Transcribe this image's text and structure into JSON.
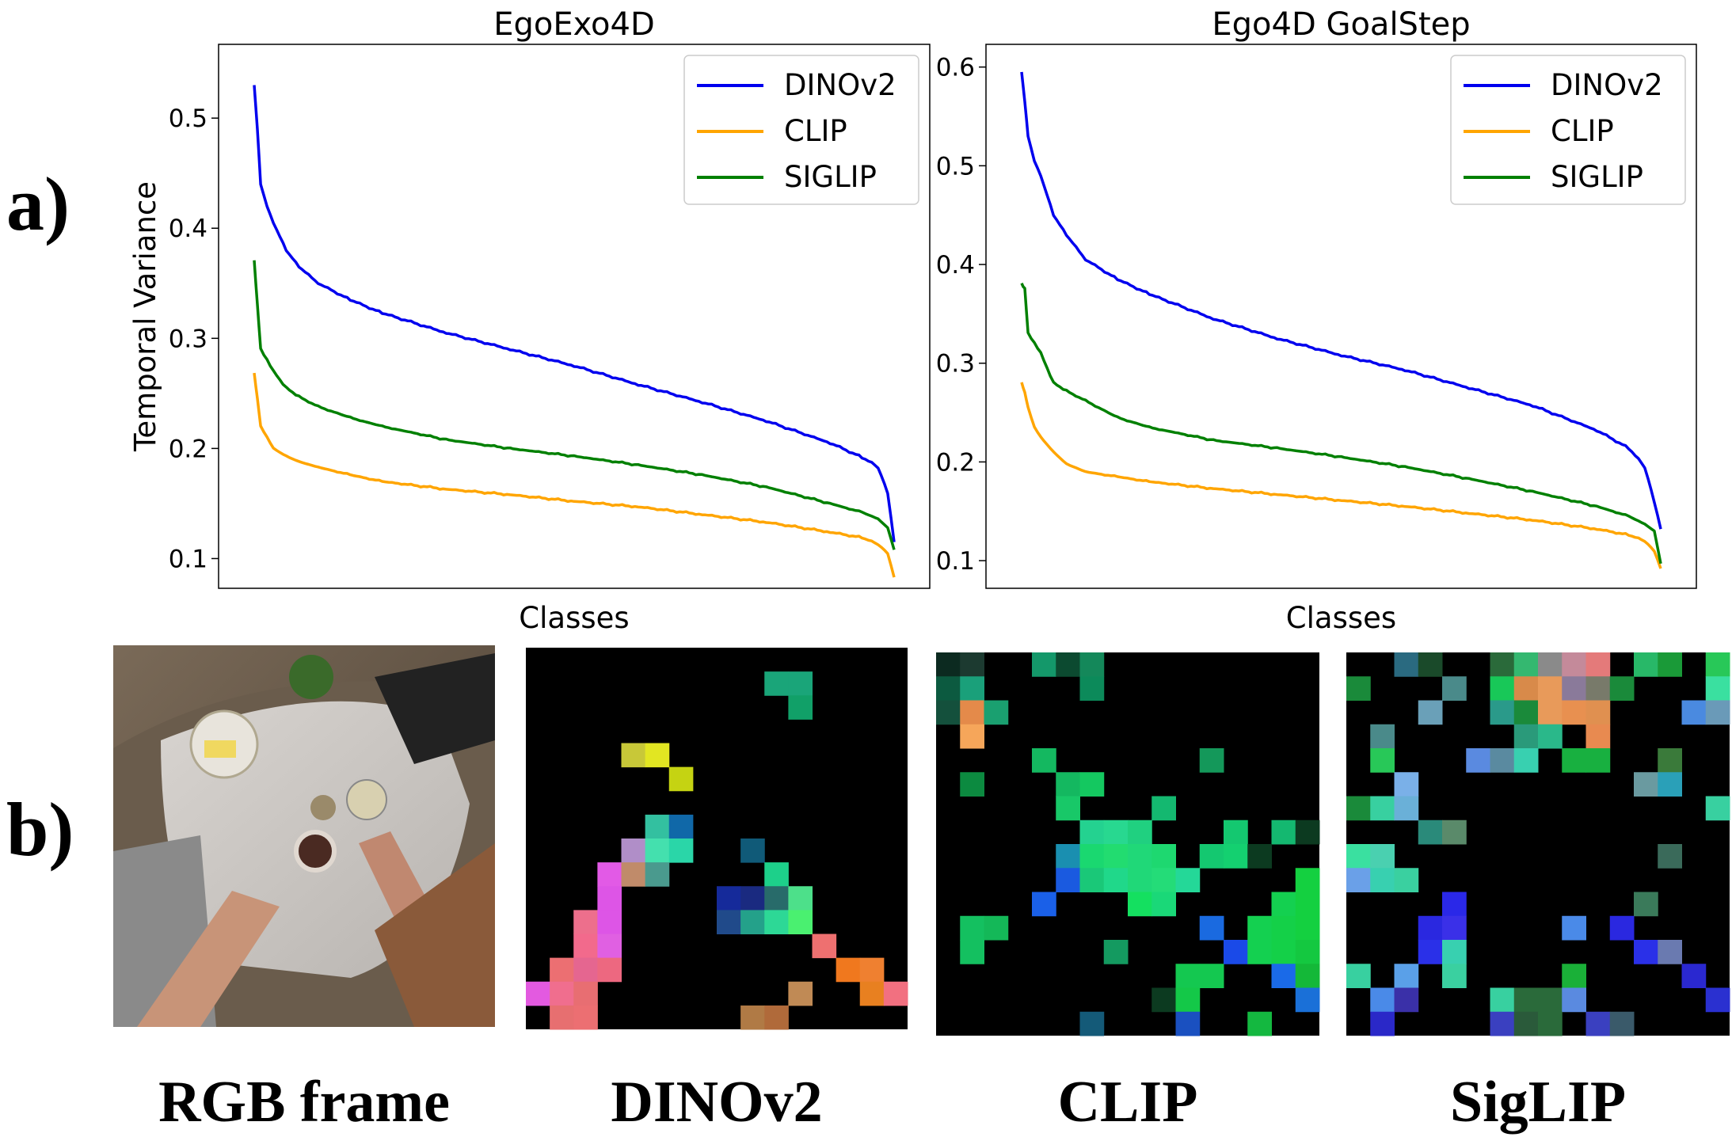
{
  "row_labels": {
    "a": "a)",
    "b": "b)"
  },
  "chart_data": [
    {
      "type": "line",
      "title": "EgoExo4D",
      "xlabel": "Classes",
      "ylabel": "Temporal Variance",
      "ylim": [
        0.073,
        0.567
      ],
      "yticks": [
        0.1,
        0.2,
        0.3,
        0.4,
        0.5
      ],
      "ytick_labels": [
        "0.1",
        "0.2",
        "0.3",
        "0.4",
        "0.5"
      ],
      "x": [
        0.0,
        0.005,
        0.01,
        0.02,
        0.03,
        0.05,
        0.07,
        0.1,
        0.15,
        0.2,
        0.3,
        0.4,
        0.5,
        0.6,
        0.7,
        0.8,
        0.9,
        0.95,
        0.975,
        0.99,
        1.0
      ],
      "legend_position": "top-right",
      "series": [
        {
          "name": "DINOv2",
          "color": "#0000ee",
          "values": [
            0.53,
            0.49,
            0.44,
            0.42,
            0.405,
            0.38,
            0.365,
            0.35,
            0.335,
            0.323,
            0.305,
            0.29,
            0.275,
            0.258,
            0.242,
            0.225,
            0.205,
            0.192,
            0.183,
            0.16,
            0.115
          ]
        },
        {
          "name": "CLIP",
          "color": "#ffa500",
          "values": [
            0.268,
            0.245,
            0.22,
            0.21,
            0.2,
            0.193,
            0.188,
            0.183,
            0.176,
            0.17,
            0.163,
            0.158,
            0.152,
            0.147,
            0.14,
            0.133,
            0.124,
            0.119,
            0.113,
            0.105,
            0.083
          ]
        },
        {
          "name": "SIGLIP",
          "color": "#008000",
          "values": [
            0.37,
            0.33,
            0.29,
            0.28,
            0.27,
            0.255,
            0.247,
            0.238,
            0.228,
            0.22,
            0.208,
            0.2,
            0.193,
            0.185,
            0.176,
            0.165,
            0.15,
            0.142,
            0.136,
            0.128,
            0.108
          ]
        }
      ]
    },
    {
      "type": "line",
      "title": "Ego4D GoalStep",
      "xlabel": "Classes",
      "ylabel": "",
      "ylim": [
        0.072,
        0.623
      ],
      "yticks": [
        0.1,
        0.2,
        0.3,
        0.4,
        0.5,
        0.6
      ],
      "ytick_labels": [
        "0.1",
        "0.2",
        "0.3",
        "0.4",
        "0.5",
        "0.6"
      ],
      "x": [
        0.0,
        0.005,
        0.01,
        0.02,
        0.03,
        0.05,
        0.07,
        0.1,
        0.15,
        0.2,
        0.3,
        0.4,
        0.5,
        0.6,
        0.7,
        0.8,
        0.9,
        0.95,
        0.975,
        0.99,
        1.0
      ],
      "legend_position": "top-right",
      "series": [
        {
          "name": "DINOv2",
          "color": "#0000ee",
          "values": [
            0.595,
            0.565,
            0.53,
            0.505,
            0.49,
            0.45,
            0.43,
            0.405,
            0.385,
            0.37,
            0.345,
            0.325,
            0.308,
            0.293,
            0.275,
            0.257,
            0.232,
            0.214,
            0.195,
            0.16,
            0.132
          ]
        },
        {
          "name": "CLIP",
          "color": "#ffa500",
          "values": [
            0.28,
            0.27,
            0.255,
            0.235,
            0.225,
            0.21,
            0.198,
            0.19,
            0.185,
            0.18,
            0.173,
            0.167,
            0.161,
            0.155,
            0.148,
            0.141,
            0.132,
            0.126,
            0.12,
            0.11,
            0.092
          ]
        },
        {
          "name": "SIGLIP",
          "color": "#008000",
          "values": [
            0.38,
            0.375,
            0.33,
            0.32,
            0.31,
            0.28,
            0.272,
            0.262,
            0.245,
            0.235,
            0.222,
            0.214,
            0.205,
            0.195,
            0.183,
            0.17,
            0.155,
            0.145,
            0.137,
            0.13,
            0.097
          ]
        }
      ]
    }
  ],
  "feature_maps": [
    {
      "caption": "RGB frame",
      "kind": "photo"
    },
    {
      "caption": "DINOv2",
      "kind": "grid",
      "size": 16,
      "cells": [
        [
          1,
          10,
          "#1aa579"
        ],
        [
          1,
          11,
          "#1aa579"
        ],
        [
          2,
          11,
          "#11a068"
        ],
        [
          4,
          4,
          "#c8c838"
        ],
        [
          4,
          5,
          "#e2e622"
        ],
        [
          5,
          6,
          "#c5d312"
        ],
        [
          7,
          5,
          "#33c0a0"
        ],
        [
          7,
          6,
          "#1068a8"
        ],
        [
          8,
          4,
          "#b08ec8"
        ],
        [
          8,
          5,
          "#44e0ae"
        ],
        [
          8,
          6,
          "#2ad6a8"
        ],
        [
          8,
          9,
          "#105a78"
        ],
        [
          9,
          3,
          "#e25ae6"
        ],
        [
          9,
          4,
          "#c08b6a"
        ],
        [
          9,
          5,
          "#4a9a8e"
        ],
        [
          9,
          10,
          "#1dd08a"
        ],
        [
          10,
          3,
          "#dd55e6"
        ],
        [
          10,
          8,
          "#152a9a"
        ],
        [
          10,
          9,
          "#1a2a80"
        ],
        [
          10,
          10,
          "#286b6a"
        ],
        [
          10,
          11,
          "#4de08a"
        ],
        [
          11,
          2,
          "#ed6f8c"
        ],
        [
          11,
          3,
          "#dd55e6"
        ],
        [
          11,
          8,
          "#204a8a"
        ],
        [
          11,
          9,
          "#24a18a"
        ],
        [
          11,
          10,
          "#2dd896"
        ],
        [
          11,
          11,
          "#4af070"
        ],
        [
          12,
          2,
          "#f26a8c"
        ],
        [
          12,
          3,
          "#e060e2"
        ],
        [
          12,
          12,
          "#ee7070"
        ],
        [
          13,
          1,
          "#ec6f72"
        ],
        [
          13,
          2,
          "#e56690"
        ],
        [
          13,
          3,
          "#ed6880"
        ],
        [
          13,
          13,
          "#f0781e"
        ],
        [
          13,
          14,
          "#ef8030"
        ],
        [
          14,
          0,
          "#e35ae0"
        ],
        [
          14,
          1,
          "#f06e8e"
        ],
        [
          14,
          2,
          "#e86e72"
        ],
        [
          14,
          11,
          "#c08a55"
        ],
        [
          14,
          14,
          "#e88020"
        ],
        [
          14,
          15,
          "#f27080"
        ],
        [
          15,
          1,
          "#e76f70"
        ],
        [
          15,
          2,
          "#ec6f72"
        ],
        [
          15,
          9,
          "#b07a45"
        ],
        [
          15,
          10,
          "#b06a3a"
        ]
      ]
    },
    {
      "caption": "CLIP",
      "kind": "grid",
      "size": 16,
      "cells": [
        [
          0,
          0,
          "#0c2a20"
        ],
        [
          0,
          1,
          "#1c3a30"
        ],
        [
          0,
          4,
          "#14986a"
        ],
        [
          0,
          5,
          "#0c4a30"
        ],
        [
          0,
          6,
          "#14885a"
        ],
        [
          1,
          0,
          "#0c5a40"
        ],
        [
          1,
          1,
          "#1aa07a"
        ],
        [
          1,
          6,
          "#0c8a5a"
        ],
        [
          2,
          0,
          "#14503c"
        ],
        [
          2,
          1,
          "#e48a4a"
        ],
        [
          2,
          2,
          "#1aa070"
        ],
        [
          3,
          1,
          "#f6a65a"
        ],
        [
          4,
          4,
          "#14b860"
        ],
        [
          4,
          11,
          "#14985a"
        ],
        [
          5,
          1,
          "#0c8a40"
        ],
        [
          5,
          5,
          "#14b860"
        ],
        [
          5,
          6,
          "#14c860"
        ],
        [
          6,
          5,
          "#18c868"
        ],
        [
          6,
          9,
          "#14b870"
        ],
        [
          7,
          6,
          "#24d290"
        ],
        [
          7,
          7,
          "#28d890"
        ],
        [
          7,
          8,
          "#20d080"
        ],
        [
          7,
          12,
          "#14c870"
        ],
        [
          7,
          14,
          "#14b870"
        ],
        [
          7,
          15,
          "#0c3a20"
        ],
        [
          8,
          5,
          "#1a8fb0"
        ],
        [
          8,
          6,
          "#1ad870"
        ],
        [
          8,
          7,
          "#22dc70"
        ],
        [
          8,
          8,
          "#20d878"
        ],
        [
          8,
          9,
          "#1ed870"
        ],
        [
          8,
          11,
          "#14c870"
        ],
        [
          8,
          12,
          "#14d070"
        ],
        [
          8,
          13,
          "#0c3a20"
        ],
        [
          9,
          5,
          "#1a5ae0"
        ],
        [
          9,
          6,
          "#1ac878"
        ],
        [
          9,
          7,
          "#20d88a"
        ],
        [
          9,
          8,
          "#20d878"
        ],
        [
          9,
          9,
          "#24dc78"
        ],
        [
          9,
          10,
          "#24d898"
        ],
        [
          9,
          15,
          "#14d040"
        ],
        [
          10,
          4,
          "#1a60e8"
        ],
        [
          10,
          8,
          "#14e060"
        ],
        [
          10,
          9,
          "#1ad878"
        ],
        [
          10,
          14,
          "#14d050"
        ],
        [
          10,
          15,
          "#14d040"
        ],
        [
          11,
          1,
          "#14c060"
        ],
        [
          11,
          2,
          "#14b858"
        ],
        [
          11,
          11,
          "#1a6ae0"
        ],
        [
          11,
          13,
          "#14d050"
        ],
        [
          11,
          14,
          "#14d048"
        ],
        [
          11,
          15,
          "#14d040"
        ],
        [
          12,
          1,
          "#14c060"
        ],
        [
          12,
          7,
          "#149a60"
        ],
        [
          12,
          12,
          "#1a4ae8"
        ],
        [
          12,
          13,
          "#14d050"
        ],
        [
          12,
          14,
          "#14d048"
        ],
        [
          12,
          15,
          "#14c840"
        ],
        [
          13,
          10,
          "#14c850"
        ],
        [
          13,
          11,
          "#14c850"
        ],
        [
          13,
          14,
          "#1a6ae8"
        ],
        [
          13,
          15,
          "#14b838"
        ],
        [
          14,
          9,
          "#0c3a20"
        ],
        [
          14,
          10,
          "#14c848"
        ],
        [
          14,
          15,
          "#1a70d8"
        ],
        [
          15,
          6,
          "#145a78"
        ],
        [
          15,
          10,
          "#1a50c0"
        ],
        [
          15,
          13,
          "#14b840"
        ]
      ]
    },
    {
      "caption": "SigLIP",
      "kind": "grid",
      "size": 16,
      "cells": [
        [
          0,
          2,
          "#2a6a80"
        ],
        [
          0,
          3,
          "#1a4a2a"
        ],
        [
          0,
          6,
          "#2a6a3a"
        ],
        [
          0,
          7,
          "#34b870"
        ],
        [
          0,
          8,
          "#8a8a8a"
        ],
        [
          0,
          9,
          "#c48a9a"
        ],
        [
          0,
          10,
          "#e47a7a"
        ],
        [
          0,
          12,
          "#28b868"
        ],
        [
          0,
          13,
          "#1a9a38"
        ],
        [
          0,
          15,
          "#28c858"
        ],
        [
          1,
          0,
          "#1a8a3a"
        ],
        [
          1,
          4,
          "#4a8a8a"
        ],
        [
          1,
          6,
          "#18c858"
        ],
        [
          1,
          7,
          "#d88a4a"
        ],
        [
          1,
          8,
          "#e89a5a"
        ],
        [
          1,
          9,
          "#8a7a9a"
        ],
        [
          1,
          10,
          "#787a6a"
        ],
        [
          1,
          11,
          "#1a8a3a"
        ],
        [
          1,
          15,
          "#3ae0a0"
        ],
        [
          2,
          3,
          "#6aa0b8"
        ],
        [
          2,
          6,
          "#2a9a8a"
        ],
        [
          2,
          7,
          "#1a8a3a"
        ],
        [
          2,
          8,
          "#e89a5a"
        ],
        [
          2,
          9,
          "#e89050"
        ],
        [
          2,
          10,
          "#e09050"
        ],
        [
          2,
          14,
          "#4a8ae0"
        ],
        [
          2,
          15,
          "#6a9ab8"
        ],
        [
          3,
          1,
          "#4a8a8a"
        ],
        [
          3,
          7,
          "#2a9a7a"
        ],
        [
          3,
          8,
          "#2ab88a"
        ],
        [
          3,
          10,
          "#e88a50"
        ],
        [
          4,
          1,
          "#28c858"
        ],
        [
          4,
          5,
          "#5a8ae0"
        ],
        [
          4,
          6,
          "#5a8aa0"
        ],
        [
          4,
          7,
          "#38d0b0"
        ],
        [
          4,
          9,
          "#18b040"
        ],
        [
          4,
          10,
          "#18b040"
        ],
        [
          4,
          13,
          "#3a7a3a"
        ],
        [
          5,
          2,
          "#7ab0e8"
        ],
        [
          5,
          12,
          "#6a9aa0"
        ],
        [
          5,
          13,
          "#2aa0b8"
        ],
        [
          6,
          0,
          "#1a8a3a"
        ],
        [
          6,
          1,
          "#38d0a0"
        ],
        [
          6,
          2,
          "#6ab0d8"
        ],
        [
          6,
          15,
          "#38d0a0"
        ],
        [
          7,
          3,
          "#2a8a7a"
        ],
        [
          7,
          4,
          "#5a8a6a"
        ],
        [
          8,
          0,
          "#3ae0a0"
        ],
        [
          8,
          1,
          "#4ad0b0"
        ],
        [
          8,
          13,
          "#3a6a5a"
        ],
        [
          9,
          0,
          "#6aa0e8"
        ],
        [
          9,
          1,
          "#38d0b0"
        ],
        [
          9,
          2,
          "#3ad0a0"
        ],
        [
          10,
          4,
          "#2a28e8"
        ],
        [
          10,
          12,
          "#3a7a5a"
        ],
        [
          11,
          3,
          "#2a28e0"
        ],
        [
          11,
          4,
          "#3a30e8"
        ],
        [
          11,
          9,
          "#4a8ae8"
        ],
        [
          11,
          11,
          "#2a28e0"
        ],
        [
          12,
          3,
          "#2a30e8"
        ],
        [
          12,
          4,
          "#38d0b0"
        ],
        [
          12,
          12,
          "#2a30e8"
        ],
        [
          12,
          13,
          "#6a7ab0"
        ],
        [
          13,
          0,
          "#38d0a0"
        ],
        [
          13,
          2,
          "#5aa0e8"
        ],
        [
          13,
          4,
          "#3ad0a0"
        ],
        [
          13,
          9,
          "#1ab038"
        ],
        [
          13,
          14,
          "#2a28d0"
        ],
        [
          14,
          1,
          "#4a8ae8"
        ],
        [
          14,
          2,
          "#3a30a8"
        ],
        [
          14,
          6,
          "#38d0a0"
        ],
        [
          14,
          7,
          "#2a6a3a"
        ],
        [
          14,
          8,
          "#2a6a3a"
        ],
        [
          14,
          9,
          "#5a8ae0"
        ],
        [
          14,
          15,
          "#2a30d0"
        ],
        [
          15,
          1,
          "#2a28c8"
        ],
        [
          15,
          6,
          "#3a40c0"
        ],
        [
          15,
          7,
          "#2a5a3a"
        ],
        [
          15,
          8,
          "#2a6a3a"
        ],
        [
          15,
          10,
          "#3a40c0"
        ],
        [
          15,
          11,
          "#3a5a6a"
        ]
      ]
    }
  ]
}
